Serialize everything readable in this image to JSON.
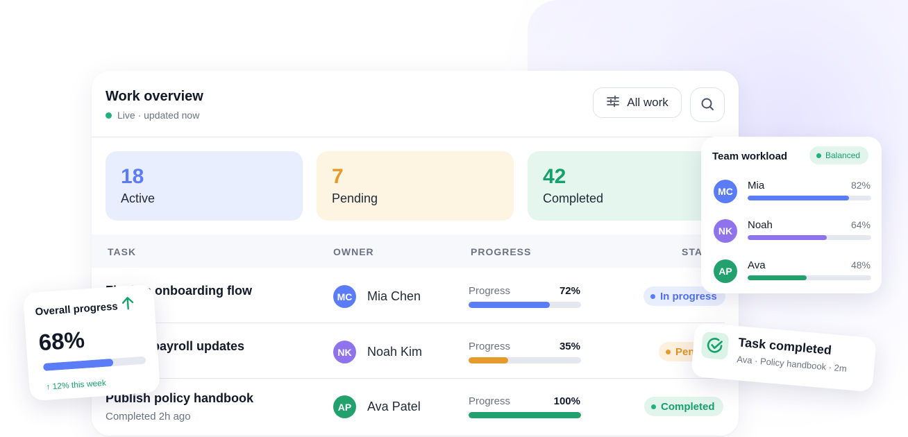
{
  "header": {
    "title": "Work overview",
    "live_text": "Live · updated now",
    "filter_label": "All work"
  },
  "stats": [
    {
      "value": "18",
      "label": "Active"
    },
    {
      "value": "7",
      "label": "Pending"
    },
    {
      "value": "42",
      "label": "Completed"
    }
  ],
  "table": {
    "columns": [
      "TASK",
      "OWNER",
      "PROGRESS",
      "STA"
    ],
    "rows": [
      {
        "task": "Finalize onboarding flow",
        "owner_initials": "MC",
        "owner": "Mia Chen",
        "progress_label": "Progress",
        "progress_text": "72%",
        "progress": 0.72,
        "status": "In progress"
      },
      {
        "task": "Review payroll updates",
        "owner_initials": "NK",
        "owner": "Noah Kim",
        "progress_label": "Progress",
        "progress_text": "35%",
        "progress": 0.35,
        "status": "Pending"
      },
      {
        "task": "Publish policy handbook",
        "subtitle": "Completed 2h ago",
        "owner_initials": "AP",
        "owner": "Ava Patel",
        "progress_label": "Progress",
        "progress_text": "100%",
        "progress": 1.0,
        "status": "Completed"
      }
    ]
  },
  "overall": {
    "title": "Overall progress",
    "value": "68%",
    "fill": 0.68,
    "trend": "↑ 12% this week"
  },
  "team": {
    "title": "Team workload",
    "badge": "Balanced",
    "members": [
      {
        "initials": "MC",
        "name": "Mia",
        "pct": "82%",
        "fill": 0.82
      },
      {
        "initials": "NK",
        "name": "Noah",
        "pct": "64%",
        "fill": 0.64
      },
      {
        "initials": "AP",
        "name": "Ava",
        "pct": "48%",
        "fill": 0.48
      }
    ]
  },
  "toast": {
    "title": "Task completed",
    "subtitle": "Ava · Policy handbook · 2m"
  },
  "colors": {
    "blue": "#5b7cf7",
    "purple": "#8f73ec",
    "green": "#22b07d",
    "orange": "#e59a2b"
  },
  "icons": {
    "filter": "sliders-icon",
    "search": "search-icon",
    "trend": "arrow-up-icon",
    "toast": "check-circle-icon"
  }
}
